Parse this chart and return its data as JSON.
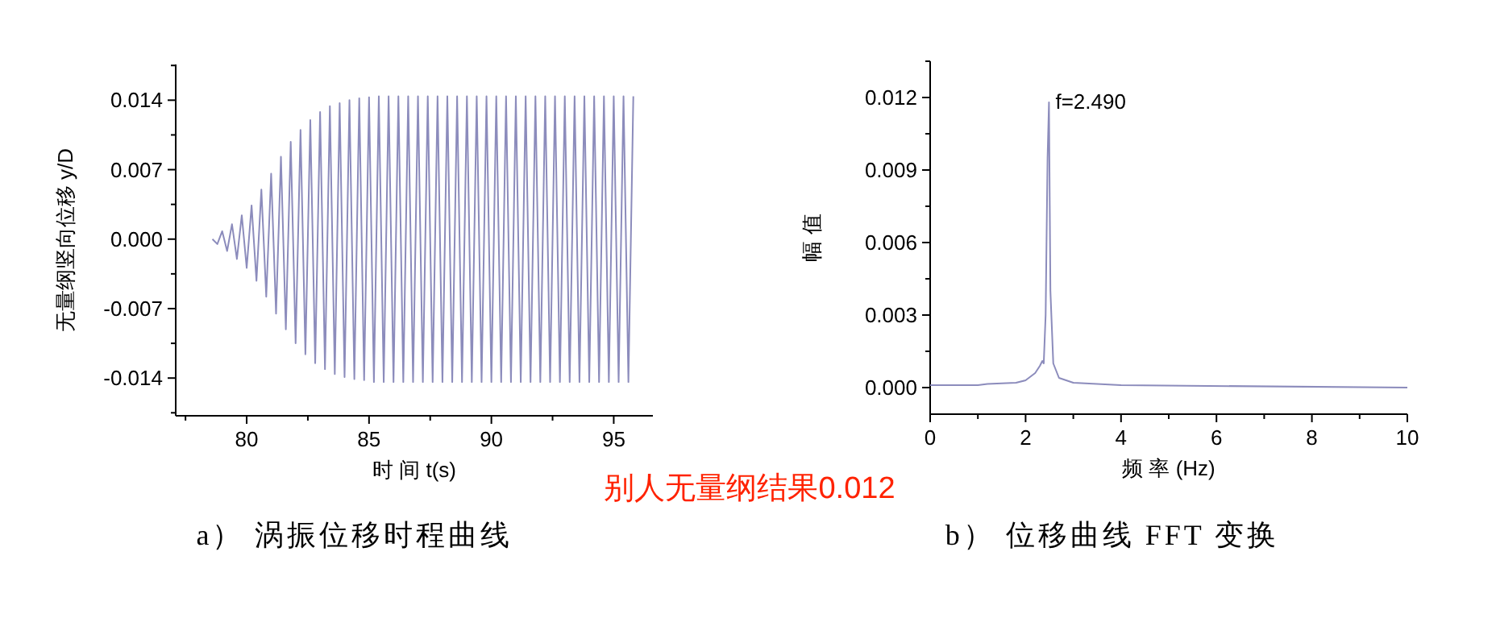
{
  "chart_data": [
    {
      "type": "line",
      "xlabel": "时 间 t(s)",
      "ylabel": "无量纲竖向位移 y/D",
      "xlim": [
        77.1,
        96.6
      ],
      "ylim": [
        -0.0178,
        0.0176
      ],
      "xticks": [
        80,
        85,
        90,
        95
      ],
      "yticks": [
        {
          "value": -0.014,
          "label": "-0.014"
        },
        {
          "value": -0.007,
          "label": "-0.007"
        },
        {
          "value": 0,
          "label": "0.000"
        },
        {
          "value": 0.007,
          "label": "0.007"
        },
        {
          "value": 0.014,
          "label": "0.014"
        }
      ],
      "series": [
        {
          "color": "#8c8cbc",
          "x": [
            78.6,
            78.8,
            79.0,
            79.2,
            79.4,
            79.6,
            79.8,
            80.0,
            80.2,
            80.4,
            80.6,
            80.8,
            81.0,
            81.2,
            81.4,
            81.6,
            81.8,
            82.0,
            82.2,
            82.4,
            82.6,
            82.8,
            83.0,
            83.2,
            83.4,
            83.6,
            83.8,
            84.0,
            84.2,
            84.4,
            84.6,
            84.8,
            85.0,
            85.2,
            85.4,
            85.6,
            85.8,
            86.0,
            86.2,
            86.4,
            86.6,
            86.8,
            87.0,
            87.2,
            87.4,
            87.6,
            87.8,
            88.0,
            88.2,
            88.4,
            88.6,
            88.8,
            89.0,
            89.2,
            89.4,
            89.6,
            89.8,
            90.0,
            90.2,
            90.4,
            90.6,
            90.8,
            91.0,
            91.2,
            91.4,
            91.6,
            91.8,
            92.0,
            92.2,
            92.4,
            92.6,
            92.8,
            93.0,
            93.2,
            93.4,
            93.6,
            93.8,
            94.0,
            94.2,
            94.4,
            94.6,
            94.8,
            95.0,
            95.2,
            95.4,
            95.6,
            95.8
          ],
          "values": [
            0,
            -0.0005,
            0.0008,
            -0.0012,
            0.0015,
            -0.002,
            0.0024,
            -0.0029,
            0.0034,
            -0.0042,
            0.005,
            -0.0058,
            0.0066,
            -0.0075,
            0.0083,
            -0.0091,
            0.0098,
            -0.0105,
            0.011,
            -0.0116,
            0.012,
            -0.0125,
            0.0128,
            -0.0131,
            0.0134,
            -0.0136,
            0.0137,
            -0.0139,
            0.014,
            -0.0141,
            0.0142,
            -0.0142,
            0.0143,
            -0.0144,
            0.0144,
            -0.0144,
            0.0144,
            -0.0144,
            0.0144,
            -0.0144,
            0.0144,
            -0.0144,
            0.0144,
            -0.0144,
            0.0144,
            -0.0144,
            0.0144,
            -0.0144,
            0.0144,
            -0.0144,
            0.0144,
            -0.0144,
            0.0144,
            -0.0144,
            0.0144,
            -0.0144,
            0.0144,
            -0.0144,
            0.0144,
            -0.0144,
            0.0144,
            -0.0144,
            0.0144,
            -0.0144,
            0.0144,
            -0.0144,
            0.0144,
            -0.0144,
            0.0144,
            -0.0144,
            0.0144,
            -0.0144,
            0.0144,
            -0.0144,
            0.0144,
            -0.0144,
            0.0144,
            -0.0144,
            0.0144,
            -0.0144,
            0.0144,
            -0.0144,
            0.0144,
            -0.0144,
            0.0144,
            -0.0144,
            0.0144
          ]
        }
      ],
      "annotations": [
        "a） 涡振位移时程曲线",
        "别人无量纲结果0.012"
      ]
    },
    {
      "type": "line",
      "xlabel": "频 率 (Hz)",
      "ylabel": "幅 值",
      "xlim": [
        0,
        10
      ],
      "ylim": [
        -0.0011,
        0.0135
      ],
      "xticks": [
        0,
        2,
        4,
        6,
        8,
        10
      ],
      "yticks": [
        {
          "value": 0,
          "label": "0.000"
        },
        {
          "value": 0.003,
          "label": "0.003"
        },
        {
          "value": 0.006,
          "label": "0.006"
        },
        {
          "value": 0.009,
          "label": "0.009"
        },
        {
          "value": 0.012,
          "label": "0.012"
        }
      ],
      "series": [
        {
          "color": "#8c8cbc",
          "x": [
            0,
            1,
            1.2,
            1.8,
            2.0,
            2.2,
            2.3,
            2.35,
            2.38,
            2.42,
            2.46,
            2.49,
            2.52,
            2.58,
            2.7,
            3,
            4,
            10
          ],
          "values": [
            0.0001,
            0.0001,
            0.00015,
            0.0002,
            0.0003,
            0.0006,
            0.0009,
            0.0011,
            0.001,
            0.003,
            0.0095,
            0.0118,
            0.004,
            0.001,
            0.0004,
            0.0002,
            0.0001,
            0
          ]
        }
      ],
      "annotations": [
        {
          "text": "f=2.490",
          "x": 2.49,
          "y": 0.0118
        },
        "b） 位移曲线 FFT 变换"
      ]
    }
  ]
}
